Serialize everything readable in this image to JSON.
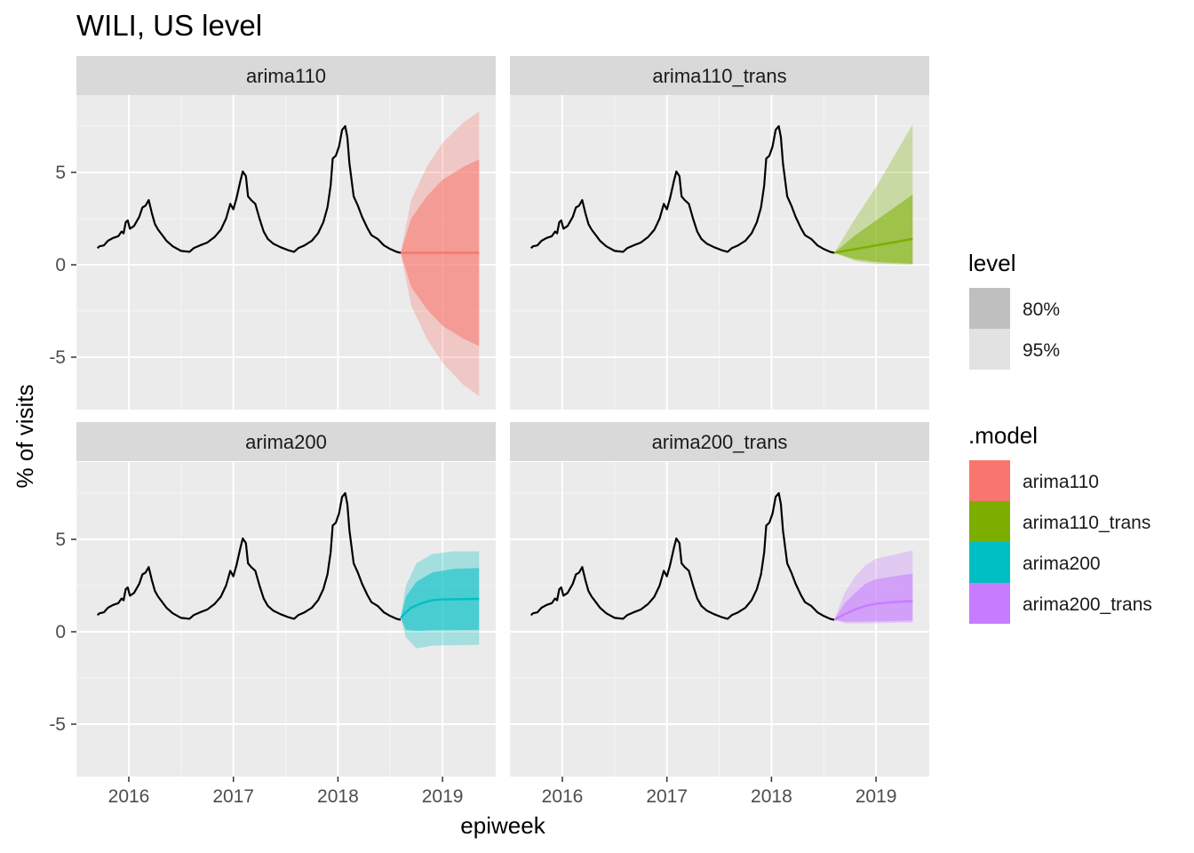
{
  "chart_data": {
    "type": "line",
    "title": "WILI, US level",
    "xlabel": "epiweek",
    "ylabel": "% of visits",
    "x_ticks": [
      2016,
      2017,
      2018,
      2019
    ],
    "y_ticks": [
      -5,
      0,
      5
    ],
    "xlim": [
      2015.5,
      2019.55
    ],
    "ylim": [
      -7.3,
      8.7
    ],
    "grid": true,
    "panels": [
      {
        "name": "arima110",
        "color": "#F8766D",
        "forecast": {
          "start": 2018.6,
          "end": 2019.35,
          "mean": [
            [
              2018.6,
              0.65
            ],
            [
              2019.35,
              0.65
            ]
          ],
          "pi80": {
            "lower": [
              [
                2018.6,
                0.65
              ],
              [
                2018.7,
                -1.2
              ],
              [
                2018.85,
                -2.4
              ],
              [
                2019.0,
                -3.3
              ],
              [
                2019.2,
                -4.0
              ],
              [
                2019.35,
                -4.4
              ]
            ],
            "upper": [
              [
                2018.6,
                0.65
              ],
              [
                2018.7,
                2.5
              ],
              [
                2018.85,
                3.7
              ],
              [
                2019.0,
                4.6
              ],
              [
                2019.2,
                5.3
              ],
              [
                2019.35,
                5.7
              ]
            ]
          },
          "pi95": {
            "lower": [
              [
                2018.6,
                0.65
              ],
              [
                2018.7,
                -2.2
              ],
              [
                2018.85,
                -4.0
              ],
              [
                2019.0,
                -5.3
              ],
              [
                2019.2,
                -6.5
              ],
              [
                2019.35,
                -7.1
              ]
            ],
            "upper": [
              [
                2018.6,
                0.65
              ],
              [
                2018.7,
                3.5
              ],
              [
                2018.85,
                5.3
              ],
              [
                2019.0,
                6.6
              ],
              [
                2019.2,
                7.7
              ],
              [
                2019.35,
                8.3
              ]
            ]
          }
        }
      },
      {
        "name": "arima110_trans",
        "color": "#7CAE00",
        "forecast": {
          "start": 2018.6,
          "end": 2019.35,
          "mean": [
            [
              2018.6,
              0.65
            ],
            [
              2019.35,
              1.4
            ]
          ],
          "pi80": {
            "lower": [
              [
                2018.6,
                0.65
              ],
              [
                2018.8,
                0.3
              ],
              [
                2019.0,
                0.15
              ],
              [
                2019.35,
                0.05
              ]
            ],
            "upper": [
              [
                2018.6,
                0.65
              ],
              [
                2018.8,
                1.6
              ],
              [
                2019.0,
                2.4
              ],
              [
                2019.35,
                3.8
              ]
            ]
          },
          "pi95": {
            "lower": [
              [
                2018.6,
                0.65
              ],
              [
                2018.8,
                0.2
              ],
              [
                2019.0,
                0.05
              ],
              [
                2019.35,
                0.0
              ]
            ],
            "upper": [
              [
                2018.6,
                0.65
              ],
              [
                2018.8,
                2.5
              ],
              [
                2019.0,
                4.2
              ],
              [
                2019.35,
                7.6
              ]
            ]
          }
        }
      },
      {
        "name": "arima200",
        "color": "#00BFC4",
        "forecast": {
          "start": 2018.6,
          "end": 2019.35,
          "mean": [
            [
              2018.6,
              0.75
            ],
            [
              2018.65,
              1.05
            ],
            [
              2018.7,
              1.3
            ],
            [
              2018.8,
              1.55
            ],
            [
              2018.9,
              1.7
            ],
            [
              2019.0,
              1.75
            ],
            [
              2019.35,
              1.78
            ]
          ],
          "pi80": {
            "lower": [
              [
                2018.6,
                0.75
              ],
              [
                2018.65,
                0.1
              ],
              [
                2018.75,
                0.05
              ],
              [
                2018.9,
                0.08
              ],
              [
                2019.35,
                0.1
              ]
            ],
            "upper": [
              [
                2018.6,
                0.75
              ],
              [
                2018.65,
                1.9
              ],
              [
                2018.75,
                2.7
              ],
              [
                2018.9,
                3.2
              ],
              [
                2019.1,
                3.4
              ],
              [
                2019.35,
                3.45
              ]
            ]
          },
          "pi95": {
            "lower": [
              [
                2018.6,
                0.75
              ],
              [
                2018.65,
                -0.3
              ],
              [
                2018.75,
                -0.9
              ],
              [
                2018.9,
                -0.75
              ],
              [
                2019.35,
                -0.7
              ]
            ],
            "upper": [
              [
                2018.6,
                0.75
              ],
              [
                2018.65,
                2.5
              ],
              [
                2018.75,
                3.7
              ],
              [
                2018.9,
                4.2
              ],
              [
                2019.1,
                4.35
              ],
              [
                2019.35,
                4.35
              ]
            ]
          }
        }
      },
      {
        "name": "arima200_trans",
        "color": "#C77CFF",
        "forecast": {
          "start": 2018.6,
          "end": 2019.35,
          "mean": [
            [
              2018.6,
              0.65
            ],
            [
              2018.7,
              0.95
            ],
            [
              2018.8,
              1.2
            ],
            [
              2018.9,
              1.4
            ],
            [
              2019.0,
              1.52
            ],
            [
              2019.2,
              1.62
            ],
            [
              2019.35,
              1.66
            ]
          ],
          "pi80": {
            "lower": [
              [
                2018.6,
                0.65
              ],
              [
                2018.7,
                0.55
              ],
              [
                2018.9,
                0.55
              ],
              [
                2019.35,
                0.6
              ]
            ],
            "upper": [
              [
                2018.6,
                0.65
              ],
              [
                2018.7,
                1.55
              ],
              [
                2018.8,
                2.1
              ],
              [
                2018.9,
                2.6
              ],
              [
                2019.0,
                2.85
              ],
              [
                2019.35,
                3.15
              ]
            ]
          },
          "pi95": {
            "lower": [
              [
                2018.6,
                0.65
              ],
              [
                2018.7,
                0.45
              ],
              [
                2018.9,
                0.45
              ],
              [
                2019.35,
                0.5
              ]
            ],
            "upper": [
              [
                2018.6,
                0.65
              ],
              [
                2018.7,
                2.1
              ],
              [
                2018.8,
                3.0
              ],
              [
                2018.9,
                3.6
              ],
              [
                2019.0,
                3.95
              ],
              [
                2019.35,
                4.4
              ]
            ]
          }
        }
      }
    ],
    "observed": [
      [
        2015.7,
        0.9
      ],
      [
        2015.72,
        1.0
      ],
      [
        2015.76,
        1.05
      ],
      [
        2015.8,
        1.3
      ],
      [
        2015.85,
        1.45
      ],
      [
        2015.9,
        1.55
      ],
      [
        2015.93,
        1.8
      ],
      [
        2015.95,
        1.7
      ],
      [
        2015.97,
        2.3
      ],
      [
        2015.99,
        2.4
      ],
      [
        2016.01,
        1.95
      ],
      [
        2016.05,
        2.1
      ],
      [
        2016.1,
        2.6
      ],
      [
        2016.13,
        3.1
      ],
      [
        2016.16,
        3.2
      ],
      [
        2016.19,
        3.5
      ],
      [
        2016.22,
        2.8
      ],
      [
        2016.25,
        2.2
      ],
      [
        2016.28,
        1.9
      ],
      [
        2016.32,
        1.6
      ],
      [
        2016.36,
        1.3
      ],
      [
        2016.42,
        1.0
      ],
      [
        2016.5,
        0.75
      ],
      [
        2016.58,
        0.7
      ],
      [
        2016.62,
        0.9
      ],
      [
        2016.68,
        1.05
      ],
      [
        2016.75,
        1.2
      ],
      [
        2016.82,
        1.5
      ],
      [
        2016.88,
        1.9
      ],
      [
        2016.93,
        2.5
      ],
      [
        2016.97,
        3.3
      ],
      [
        2017.0,
        3.0
      ],
      [
        2017.03,
        3.6
      ],
      [
        2017.07,
        4.6
      ],
      [
        2017.09,
        5.05
      ],
      [
        2017.12,
        4.8
      ],
      [
        2017.14,
        3.7
      ],
      [
        2017.17,
        3.5
      ],
      [
        2017.21,
        3.3
      ],
      [
        2017.25,
        2.5
      ],
      [
        2017.29,
        1.8
      ],
      [
        2017.33,
        1.4
      ],
      [
        2017.38,
        1.15
      ],
      [
        2017.45,
        0.95
      ],
      [
        2017.52,
        0.8
      ],
      [
        2017.58,
        0.7
      ],
      [
        2017.62,
        0.9
      ],
      [
        2017.68,
        1.05
      ],
      [
        2017.75,
        1.3
      ],
      [
        2017.81,
        1.7
      ],
      [
        2017.86,
        2.3
      ],
      [
        2017.9,
        3.1
      ],
      [
        2017.93,
        4.3
      ],
      [
        2017.95,
        5.75
      ],
      [
        2017.98,
        5.9
      ],
      [
        2018.01,
        6.4
      ],
      [
        2018.04,
        7.3
      ],
      [
        2018.07,
        7.5
      ],
      [
        2018.09,
        6.9
      ],
      [
        2018.11,
        5.5
      ],
      [
        2018.13,
        4.6
      ],
      [
        2018.15,
        3.7
      ],
      [
        2018.19,
        3.2
      ],
      [
        2018.23,
        2.6
      ],
      [
        2018.28,
        2.0
      ],
      [
        2018.32,
        1.6
      ],
      [
        2018.38,
        1.4
      ],
      [
        2018.44,
        1.05
      ],
      [
        2018.5,
        0.85
      ],
      [
        2018.56,
        0.7
      ],
      [
        2018.6,
        0.65
      ]
    ]
  },
  "legend": {
    "level": {
      "title": "level",
      "items": [
        {
          "label": "80%",
          "color": "#bfbfbf"
        },
        {
          "label": "95%",
          "color": "#e2e2e2"
        }
      ]
    },
    "model": {
      "title": ".model",
      "items": [
        {
          "label": "arima110",
          "color": "#F8766D"
        },
        {
          "label": "arima110_trans",
          "color": "#7CAE00"
        },
        {
          "label": "arima200",
          "color": "#00BFC4"
        },
        {
          "label": "arima200_trans",
          "color": "#C77CFF"
        }
      ]
    }
  }
}
